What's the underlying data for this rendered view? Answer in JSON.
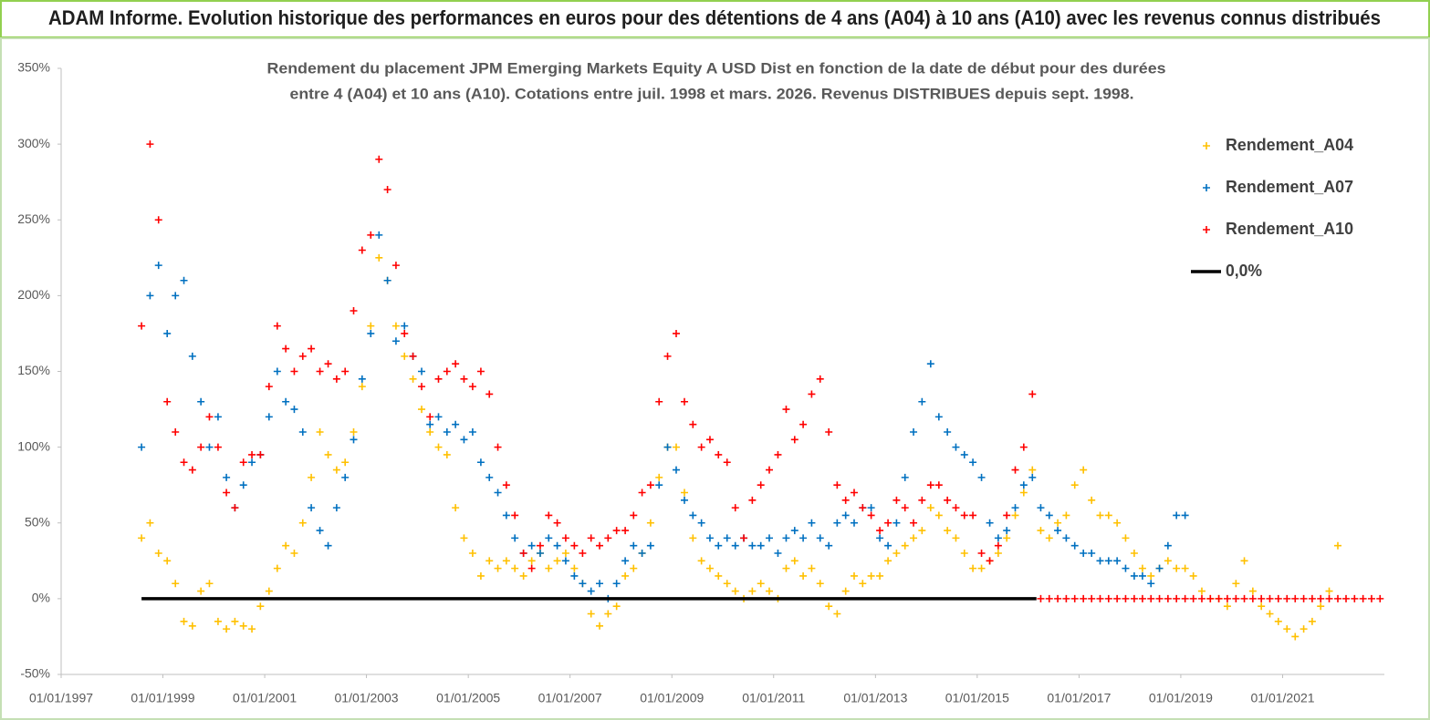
{
  "header": {
    "title": "ADAM Informe. Evolution historique des performances en euros pour des détentions de 4 ans (A04) à 10 ans (A10) avec les revenus connus distribués"
  },
  "chart_data": {
    "type": "scatter",
    "title": [
      "Rendement du placement JPM Emerging Markets Equity A USD Dist en fonction de la date de début pour des durées",
      "entre 4 (A04) et 10 ans (A10). Cotations entre juil. 1998 et mars. 2026. Revenus DISTRIBUES depuis sept. 1998."
    ],
    "xlim": [
      "1997-01-01",
      "2023-01-01"
    ],
    "xticks": [
      {
        "value": "1997-01-01",
        "label": "01/01/1997"
      },
      {
        "value": "1999-01-01",
        "label": "01/01/1999"
      },
      {
        "value": "2001-01-01",
        "label": "01/01/2001"
      },
      {
        "value": "2003-01-01",
        "label": "01/01/2003"
      },
      {
        "value": "2005-01-01",
        "label": "01/01/2005"
      },
      {
        "value": "2007-01-01",
        "label": "01/01/2007"
      },
      {
        "value": "2009-01-01",
        "label": "01/01/2009"
      },
      {
        "value": "2011-01-01",
        "label": "01/01/2011"
      },
      {
        "value": "2013-01-01",
        "label": "01/01/2013"
      },
      {
        "value": "2015-01-01",
        "label": "01/01/2015"
      },
      {
        "value": "2017-01-01",
        "label": "01/01/2017"
      },
      {
        "value": "2019-01-01",
        "label": "01/01/2019"
      },
      {
        "value": "2021-01-01",
        "label": "01/01/2021"
      }
    ],
    "ylim": [
      -50,
      350
    ],
    "yticks": [
      {
        "value": -50,
        "label": "-50%"
      },
      {
        "value": 0,
        "label": "0%"
      },
      {
        "value": 50,
        "label": "50%"
      },
      {
        "value": 100,
        "label": "100%"
      },
      {
        "value": 150,
        "label": "150%"
      },
      {
        "value": 200,
        "label": "200%"
      },
      {
        "value": 250,
        "label": "250%"
      },
      {
        "value": 300,
        "label": "300%"
      },
      {
        "value": 350,
        "label": "350%"
      }
    ],
    "grid": false,
    "legend": "right",
    "x": [
      "1998-08-01",
      "1998-10-01",
      "1998-12-01",
      "1999-02-01",
      "1999-04-01",
      "1999-06-01",
      "1999-08-01",
      "1999-10-01",
      "1999-12-01",
      "2000-02-01",
      "2000-04-01",
      "2000-06-01",
      "2000-08-01",
      "2000-10-01",
      "2000-12-01",
      "2001-02-01",
      "2001-04-01",
      "2001-06-01",
      "2001-08-01",
      "2001-10-01",
      "2001-12-01",
      "2002-02-01",
      "2002-04-01",
      "2002-06-01",
      "2002-08-01",
      "2002-10-01",
      "2002-12-01",
      "2003-02-01",
      "2003-04-01",
      "2003-06-01",
      "2003-08-01",
      "2003-10-01",
      "2003-12-01",
      "2004-02-01",
      "2004-04-01",
      "2004-06-01",
      "2004-08-01",
      "2004-10-01",
      "2004-12-01",
      "2005-02-01",
      "2005-04-01",
      "2005-06-01",
      "2005-08-01",
      "2005-10-01",
      "2005-12-01",
      "2006-02-01",
      "2006-04-01",
      "2006-06-01",
      "2006-08-01",
      "2006-10-01",
      "2006-12-01",
      "2007-02-01",
      "2007-04-01",
      "2007-06-01",
      "2007-08-01",
      "2007-10-01",
      "2007-12-01",
      "2008-02-01",
      "2008-04-01",
      "2008-06-01",
      "2008-08-01",
      "2008-10-01",
      "2008-12-01",
      "2009-02-01",
      "2009-04-01",
      "2009-06-01",
      "2009-08-01",
      "2009-10-01",
      "2009-12-01",
      "2010-02-01",
      "2010-04-01",
      "2010-06-01",
      "2010-08-01",
      "2010-10-01",
      "2010-12-01",
      "2011-02-01",
      "2011-04-01",
      "2011-06-01",
      "2011-08-01",
      "2011-10-01",
      "2011-12-01",
      "2012-02-01",
      "2012-04-01",
      "2012-06-01",
      "2012-08-01",
      "2012-10-01",
      "2012-12-01",
      "2013-02-01",
      "2013-04-01",
      "2013-06-01",
      "2013-08-01",
      "2013-10-01",
      "2013-12-01",
      "2014-02-01",
      "2014-04-01",
      "2014-06-01",
      "2014-08-01",
      "2014-10-01",
      "2014-12-01",
      "2015-02-01",
      "2015-04-01",
      "2015-06-01",
      "2015-08-01",
      "2015-10-01",
      "2015-12-01",
      "2016-02-01",
      "2016-04-01",
      "2016-06-01",
      "2016-08-01",
      "2016-10-01",
      "2016-12-01",
      "2017-02-01",
      "2017-04-01",
      "2017-06-01",
      "2017-08-01",
      "2017-10-01",
      "2017-12-01",
      "2018-02-01",
      "2018-04-01",
      "2018-06-01",
      "2018-08-01",
      "2018-10-01",
      "2018-12-01",
      "2019-02-01",
      "2019-04-01",
      "2019-06-01",
      "2019-08-01",
      "2019-10-01",
      "2019-12-01",
      "2020-02-01",
      "2020-04-01",
      "2020-06-01",
      "2020-08-01",
      "2020-10-01",
      "2020-12-01",
      "2021-02-01",
      "2021-04-01",
      "2021-06-01",
      "2021-08-01",
      "2021-10-01",
      "2021-12-01",
      "2022-02-01",
      "2022-04-01",
      "2022-06-01",
      "2022-08-01",
      "2022-10-01",
      "2022-12-01"
    ],
    "series": [
      {
        "name": "Rendement_A04",
        "color": "#ffc000",
        "values": [
          40,
          50,
          30,
          25,
          10,
          -15,
          -18,
          5,
          10,
          -15,
          -20,
          -15,
          -18,
          -20,
          -5,
          5,
          20,
          35,
          30,
          50,
          80,
          110,
          95,
          85,
          90,
          110,
          140,
          180,
          225,
          210,
          180,
          160,
          145,
          125,
          110,
          100,
          95,
          60,
          40,
          30,
          15,
          25,
          20,
          25,
          20,
          15,
          25,
          30,
          20,
          25,
          30,
          20,
          10,
          -10,
          -18,
          -10,
          -5,
          15,
          20,
          30,
          50,
          80,
          100,
          100,
          70,
          40,
          25,
          20,
          15,
          10,
          5,
          0,
          5,
          10,
          5,
          0,
          20,
          25,
          15,
          20,
          10,
          -5,
          -10,
          5,
          15,
          10,
          15,
          15,
          25,
          30,
          35,
          40,
          45,
          60,
          55,
          45,
          40,
          30,
          20,
          20,
          25,
          30,
          40,
          55,
          70,
          85,
          45,
          40,
          50,
          55,
          75,
          85,
          65,
          55,
          55,
          50,
          40,
          30,
          20,
          15,
          20,
          25,
          20,
          20,
          15,
          5,
          0,
          0,
          -5,
          10,
          25,
          5,
          -5,
          -10,
          -15,
          -20,
          -25,
          -20,
          -15,
          -5,
          5,
          35,
          null,
          null,
          null,
          null,
          null
        ]
      },
      {
        "name": "Rendement_A07",
        "color": "#0070c0",
        "values": [
          100,
          200,
          220,
          175,
          200,
          210,
          160,
          130,
          100,
          120,
          80,
          60,
          75,
          90,
          95,
          120,
          150,
          130,
          125,
          110,
          60,
          45,
          35,
          60,
          80,
          105,
          145,
          175,
          240,
          210,
          170,
          180,
          160,
          150,
          115,
          120,
          110,
          115,
          105,
          110,
          90,
          80,
          70,
          55,
          40,
          30,
          35,
          30,
          40,
          35,
          25,
          15,
          10,
          5,
          10,
          0,
          10,
          25,
          35,
          30,
          35,
          75,
          100,
          85,
          65,
          55,
          50,
          40,
          35,
          40,
          35,
          40,
          35,
          35,
          40,
          30,
          40,
          45,
          40,
          50,
          40,
          35,
          50,
          55,
          50,
          60,
          60,
          40,
          35,
          50,
          80,
          110,
          130,
          155,
          120,
          110,
          100,
          95,
          90,
          80,
          50,
          40,
          45,
          60,
          75,
          80,
          60,
          55,
          45,
          40,
          35,
          30,
          30,
          25,
          25,
          25,
          20,
          15,
          15,
          10,
          20,
          35,
          55,
          55,
          null,
          null,
          null,
          null,
          null,
          null,
          null,
          null,
          null,
          null,
          null,
          null,
          null,
          null,
          null,
          null,
          null,
          null,
          null,
          null,
          null,
          null,
          null
        ]
      },
      {
        "name": "Rendement_A10",
        "color": "#ff0000",
        "values": [
          180,
          300,
          250,
          130,
          110,
          90,
          85,
          100,
          120,
          100,
          70,
          60,
          90,
          95,
          95,
          140,
          180,
          165,
          150,
          160,
          165,
          150,
          155,
          145,
          150,
          190,
          230,
          240,
          290,
          270,
          220,
          175,
          160,
          140,
          120,
          145,
          150,
          155,
          145,
          140,
          150,
          135,
          100,
          75,
          55,
          30,
          20,
          35,
          55,
          50,
          40,
          35,
          30,
          40,
          35,
          40,
          45,
          45,
          55,
          70,
          75,
          130,
          160,
          175,
          130,
          115,
          100,
          105,
          95,
          90,
          60,
          40,
          65,
          75,
          85,
          95,
          125,
          105,
          115,
          135,
          145,
          110,
          75,
          65,
          70,
          60,
          55,
          45,
          50,
          65,
          60,
          50,
          65,
          75,
          75,
          65,
          60,
          55,
          55,
          30,
          25,
          35,
          55,
          85,
          100,
          135,
          0,
          0,
          0,
          0,
          0,
          0,
          0,
          0,
          0,
          0,
          0,
          0,
          0,
          0,
          0,
          0,
          0,
          0,
          0,
          0,
          0,
          0,
          0,
          0,
          0,
          0,
          0,
          0,
          0,
          0,
          0,
          0,
          0,
          0,
          0,
          0,
          0,
          0,
          0,
          0,
          0
        ]
      },
      {
        "name": "0,0%",
        "type": "line",
        "color": "#000000",
        "x": [
          "1998-08-01",
          "2016-03-01"
        ],
        "values": [
          0,
          0
        ]
      }
    ]
  }
}
